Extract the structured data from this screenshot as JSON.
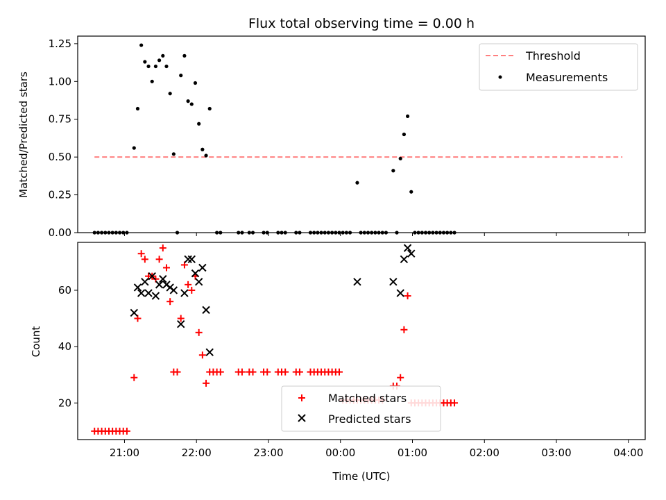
{
  "chart_data": [
    {
      "type": "scatter",
      "title": "Flux total observing time = 0.00 h",
      "xlabel": "",
      "ylabel": "Matched/Predicted stars",
      "x_unit": "UTC time (next day after 24:00)",
      "xlim": [
        "20:21",
        "04:14"
      ],
      "ylim": [
        0,
        1.3
      ],
      "yticks": [
        0,
        0.25,
        0.5,
        0.75,
        1.0,
        1.25
      ],
      "ytick_labels": [
        "0.00",
        "0.25",
        "0.50",
        "0.75",
        "1.00",
        "1.25"
      ],
      "legend_position": "top-right",
      "threshold": {
        "name": "Threshold",
        "value": 0.5,
        "x_range": [
          "20:35",
          "03:55"
        ],
        "color": "#ff7f7f",
        "style": "dashed"
      },
      "series": [
        {
          "name": "Measurements",
          "color": "#000000",
          "marker": "dot",
          "points": [
            [
              "20:35",
              0
            ],
            [
              "20:38",
              0
            ],
            [
              "20:41",
              0
            ],
            [
              "20:44",
              0
            ],
            [
              "20:47",
              0
            ],
            [
              "20:50",
              0
            ],
            [
              "20:53",
              0
            ],
            [
              "20:56",
              0
            ],
            [
              "20:59",
              0
            ],
            [
              "21:02",
              0
            ],
            [
              "21:08",
              0.56
            ],
            [
              "21:11",
              0.82
            ],
            [
              "21:14",
              1.24
            ],
            [
              "21:17",
              1.13
            ],
            [
              "21:20",
              1.1
            ],
            [
              "21:23",
              1.0
            ],
            [
              "21:26",
              1.1
            ],
            [
              "21:29",
              1.14
            ],
            [
              "21:32",
              1.17
            ],
            [
              "21:35",
              1.1
            ],
            [
              "21:38",
              0.92
            ],
            [
              "21:41",
              0.52
            ],
            [
              "21:44",
              0
            ],
            [
              "21:47",
              1.04
            ],
            [
              "21:50",
              1.17
            ],
            [
              "21:53",
              0.87
            ],
            [
              "21:56",
              0.85
            ],
            [
              "21:59",
              0.99
            ],
            [
              "22:02",
              0.72
            ],
            [
              "22:05",
              0.55
            ],
            [
              "22:08",
              0.51
            ],
            [
              "22:11",
              0.82
            ],
            [
              "22:17",
              0
            ],
            [
              "22:20",
              0
            ],
            [
              "22:35",
              0
            ],
            [
              "22:38",
              0
            ],
            [
              "22:44",
              0
            ],
            [
              "22:47",
              0
            ],
            [
              "22:56",
              0
            ],
            [
              "22:59",
              0
            ],
            [
              "23:08",
              0
            ],
            [
              "23:11",
              0
            ],
            [
              "23:14",
              0
            ],
            [
              "23:23",
              0
            ],
            [
              "23:26",
              0
            ],
            [
              "23:35",
              0
            ],
            [
              "23:38",
              0
            ],
            [
              "23:41",
              0
            ],
            [
              "23:44",
              0
            ],
            [
              "23:47",
              0
            ],
            [
              "23:50",
              0
            ],
            [
              "23:53",
              0
            ],
            [
              "23:56",
              0
            ],
            [
              "23:59",
              0
            ],
            [
              "00:02",
              0
            ],
            [
              "00:05",
              0
            ],
            [
              "00:08",
              0
            ],
            [
              "00:14",
              0.33
            ],
            [
              "00:17",
              0
            ],
            [
              "00:20",
              0
            ],
            [
              "00:23",
              0
            ],
            [
              "00:26",
              0
            ],
            [
              "00:29",
              0
            ],
            [
              "00:32",
              0
            ],
            [
              "00:35",
              0
            ],
            [
              "00:38",
              0
            ],
            [
              "00:44",
              0.41
            ],
            [
              "00:47",
              0
            ],
            [
              "00:50",
              0.49
            ],
            [
              "00:53",
              0.65
            ],
            [
              "00:56",
              0.77
            ],
            [
              "00:59",
              0.27
            ],
            [
              "01:02",
              0
            ],
            [
              "01:05",
              0
            ],
            [
              "01:08",
              0
            ],
            [
              "01:11",
              0
            ],
            [
              "01:14",
              0
            ],
            [
              "01:17",
              0
            ],
            [
              "01:20",
              0
            ],
            [
              "01:23",
              0
            ],
            [
              "01:26",
              0
            ],
            [
              "01:29",
              0
            ],
            [
              "01:32",
              0
            ],
            [
              "01:35",
              0
            ]
          ]
        }
      ]
    },
    {
      "type": "scatter",
      "title": "",
      "xlabel": "Time (UTC)",
      "ylabel": "Count",
      "xlim": [
        "20:21",
        "04:14"
      ],
      "ylim": [
        7,
        77
      ],
      "yticks": [
        20,
        40,
        60
      ],
      "xtick_labels": [
        "21:00",
        "22:00",
        "23:00",
        "00:00",
        "01:00",
        "02:00",
        "03:00",
        "04:00"
      ],
      "legend_position": "lower-center",
      "series": [
        {
          "name": "Matched stars",
          "color": "#ff0000",
          "marker": "plus",
          "points": [
            [
              "20:35",
              10
            ],
            [
              "20:38",
              10
            ],
            [
              "20:41",
              10
            ],
            [
              "20:44",
              10
            ],
            [
              "20:47",
              10
            ],
            [
              "20:50",
              10
            ],
            [
              "20:53",
              10
            ],
            [
              "20:56",
              10
            ],
            [
              "20:59",
              10
            ],
            [
              "21:02",
              10
            ],
            [
              "21:08",
              29
            ],
            [
              "21:11",
              50
            ],
            [
              "21:14",
              73
            ],
            [
              "21:17",
              71
            ],
            [
              "21:20",
              65
            ],
            [
              "21:23",
              65
            ],
            [
              "21:26",
              64
            ],
            [
              "21:29",
              71
            ],
            [
              "21:32",
              75
            ],
            [
              "21:35",
              68
            ],
            [
              "21:38",
              56
            ],
            [
              "21:41",
              31
            ],
            [
              "21:44",
              31
            ],
            [
              "21:47",
              50
            ],
            [
              "21:50",
              69
            ],
            [
              "21:53",
              62
            ],
            [
              "21:56",
              60
            ],
            [
              "21:59",
              65
            ],
            [
              "22:02",
              45
            ],
            [
              "22:05",
              37
            ],
            [
              "22:08",
              27
            ],
            [
              "22:11",
              31
            ],
            [
              "22:14",
              31
            ],
            [
              "22:17",
              31
            ],
            [
              "22:20",
              31
            ],
            [
              "22:35",
              31
            ],
            [
              "22:38",
              31
            ],
            [
              "22:44",
              31
            ],
            [
              "22:47",
              31
            ],
            [
              "22:56",
              31
            ],
            [
              "22:59",
              31
            ],
            [
              "23:08",
              31
            ],
            [
              "23:11",
              31
            ],
            [
              "23:14",
              31
            ],
            [
              "23:23",
              31
            ],
            [
              "23:26",
              31
            ],
            [
              "23:35",
              31
            ],
            [
              "23:38",
              31
            ],
            [
              "23:41",
              31
            ],
            [
              "23:44",
              31
            ],
            [
              "23:47",
              31
            ],
            [
              "23:50",
              31
            ],
            [
              "23:53",
              31
            ],
            [
              "23:56",
              31
            ],
            [
              "23:59",
              31
            ],
            [
              "00:02",
              21
            ],
            [
              "00:05",
              21
            ],
            [
              "00:08",
              21
            ],
            [
              "00:11",
              21
            ],
            [
              "00:14",
              21
            ],
            [
              "00:17",
              21
            ],
            [
              "00:20",
              21
            ],
            [
              "00:23",
              21
            ],
            [
              "00:26",
              21
            ],
            [
              "00:29",
              21
            ],
            [
              "00:32",
              21
            ],
            [
              "00:35",
              21
            ],
            [
              "00:44",
              26
            ],
            [
              "00:47",
              26
            ],
            [
              "00:50",
              29
            ],
            [
              "00:53",
              46
            ],
            [
              "00:56",
              58
            ],
            [
              "00:59",
              20
            ],
            [
              "01:02",
              20
            ],
            [
              "01:05",
              20
            ],
            [
              "01:08",
              20
            ],
            [
              "01:11",
              20
            ],
            [
              "01:14",
              20
            ],
            [
              "01:17",
              20
            ],
            [
              "01:20",
              20
            ],
            [
              "01:23",
              20
            ],
            [
              "01:26",
              20
            ],
            [
              "01:29",
              20
            ],
            [
              "01:32",
              20
            ],
            [
              "01:35",
              20
            ]
          ]
        },
        {
          "name": "Predicted stars",
          "color": "#000000",
          "marker": "x",
          "points": [
            [
              "21:08",
              52
            ],
            [
              "21:11",
              61
            ],
            [
              "21:14",
              59
            ],
            [
              "21:17",
              63
            ],
            [
              "21:20",
              59
            ],
            [
              "21:23",
              65
            ],
            [
              "21:26",
              58
            ],
            [
              "21:29",
              62
            ],
            [
              "21:32",
              64
            ],
            [
              "21:35",
              62
            ],
            [
              "21:38",
              61
            ],
            [
              "21:41",
              60
            ],
            [
              "21:47",
              48
            ],
            [
              "21:50",
              59
            ],
            [
              "21:53",
              71
            ],
            [
              "21:56",
              71
            ],
            [
              "21:59",
              66
            ],
            [
              "22:02",
              63
            ],
            [
              "22:05",
              68
            ],
            [
              "22:08",
              53
            ],
            [
              "22:11",
              38
            ],
            [
              "00:14",
              63
            ],
            [
              "00:44",
              63
            ],
            [
              "00:50",
              59
            ],
            [
              "00:53",
              71
            ],
            [
              "00:56",
              75
            ],
            [
              "00:59",
              73
            ]
          ]
        }
      ]
    }
  ]
}
